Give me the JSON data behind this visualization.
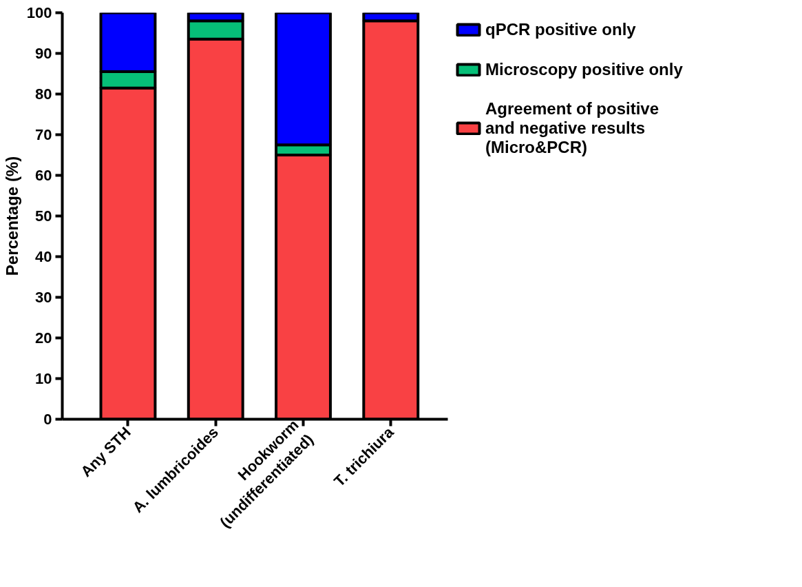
{
  "chart_data": {
    "type": "bar",
    "stacked": true,
    "ylabel": "Percentage (%)",
    "categories": [
      "Any STH",
      "A. lumbricoides",
      "Hookworm\n(undifferentiated)",
      "T. trichiura"
    ],
    "series": [
      {
        "name": "Agreement of positive and negative results (Micro&PCR)",
        "color": "#f94144",
        "values": [
          81.5,
          93.5,
          65,
          98
        ]
      },
      {
        "name": "Microscopy positive only",
        "color": "#06bf78",
        "values": [
          4,
          4.5,
          2.5,
          null
        ]
      },
      {
        "name": "qPCR positive only",
        "color": "#0000ff",
        "values": [
          14.5,
          2,
          32.5,
          2
        ]
      }
    ],
    "ylim": [
      0,
      100
    ],
    "yticks": [
      0,
      10,
      20,
      30,
      40,
      50,
      60,
      70,
      80,
      90,
      100
    ],
    "grid": false,
    "legend": "right"
  }
}
